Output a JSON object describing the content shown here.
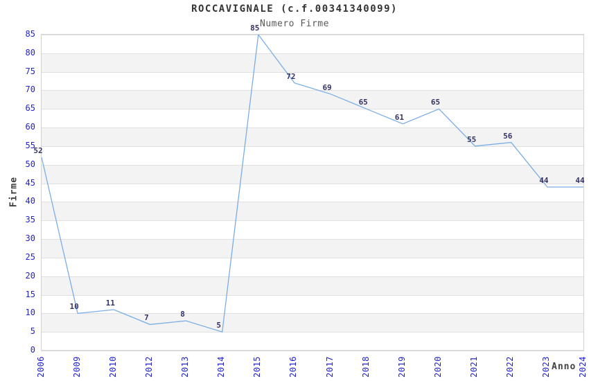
{
  "chart_data": {
    "type": "line",
    "title": "ROCCAVIGNALE (c.f.00341340099)",
    "subtitle": "Numero Firme",
    "xlabel": "Anno",
    "ylabel": "Firme",
    "categories": [
      "2006",
      "2009",
      "2010",
      "2012",
      "2013",
      "2014",
      "2015",
      "2016",
      "2017",
      "2018",
      "2019",
      "2020",
      "2021",
      "2022",
      "2023",
      "2024"
    ],
    "series": [
      {
        "name": "Numero Firme",
        "values": [
          52,
          10,
          11,
          7,
          8,
          5,
          85,
          72,
          69,
          65,
          61,
          65,
          55,
          56,
          44,
          44
        ]
      }
    ],
    "ylim": [
      0,
      85
    ],
    "ytick_step": 5,
    "grid": "horizontal-bands",
    "legend": "none",
    "colors": {
      "line": "#7aade4",
      "data_label": "#333366",
      "tick_label": "#2222cc",
      "axis_title": "#404040",
      "title": "#333333",
      "subtitle": "#595959",
      "band_fill": "#f3f3f3",
      "grid_line": "#e0e0e0",
      "plot_border": "#d3d3d3",
      "background": "#ffffff"
    }
  }
}
